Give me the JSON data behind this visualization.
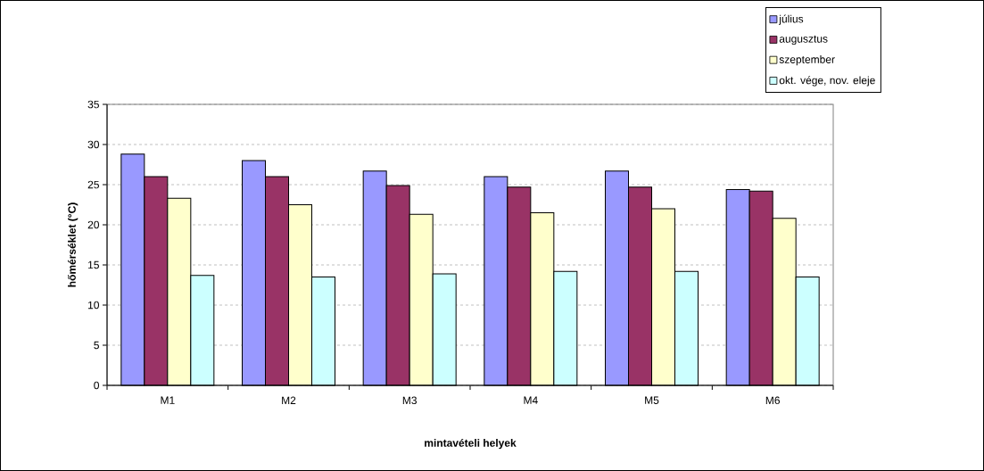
{
  "chart_data": {
    "type": "bar",
    "xlabel": "mintavételi helyek",
    "ylabel": "hőmérséklet (°C)",
    "categories": [
      "M1",
      "M2",
      "M3",
      "M4",
      "M5",
      "M6"
    ],
    "series": [
      {
        "name": "július",
        "color": "#9999ff",
        "values": [
          28.8,
          28.0,
          26.7,
          26.0,
          26.7,
          24.4
        ]
      },
      {
        "name": "augusztus",
        "color": "#993366",
        "values": [
          26.0,
          26.0,
          24.9,
          24.7,
          24.7,
          24.2
        ]
      },
      {
        "name": "szeptember",
        "color": "#ffffcc",
        "values": [
          23.3,
          22.5,
          21.3,
          21.5,
          22.0,
          20.8
        ]
      },
      {
        "name": "okt. vége, nov. eleje",
        "color": "#ccffff",
        "values": [
          13.7,
          13.5,
          13.9,
          14.2,
          14.2,
          13.5
        ]
      }
    ],
    "ylim": [
      0,
      35
    ],
    "yticks": [
      0,
      5,
      10,
      15,
      20,
      25,
      30,
      35
    ],
    "grid": "y",
    "legend": "top right"
  }
}
